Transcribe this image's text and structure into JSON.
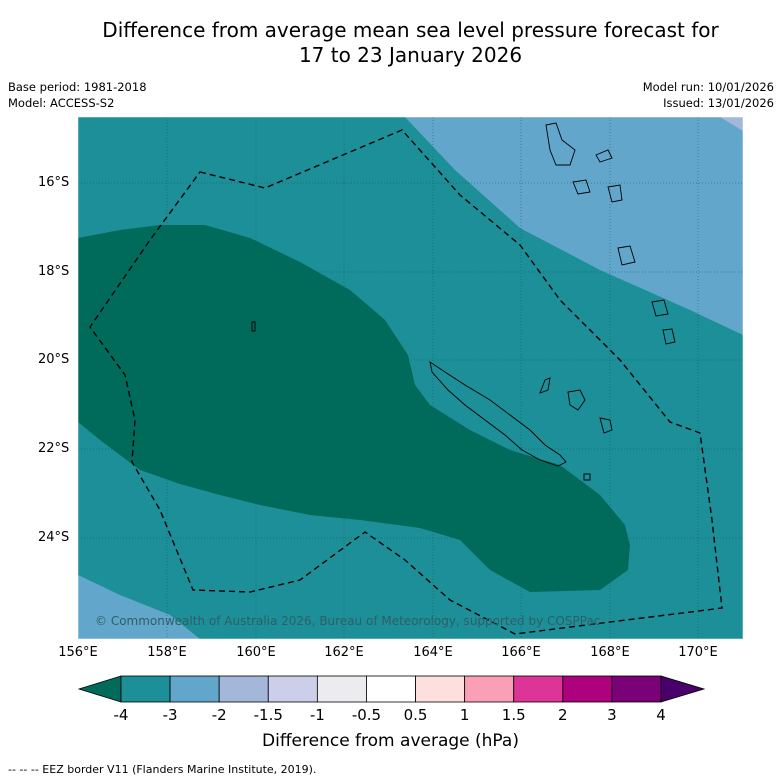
{
  "title_line1": "Difference from average mean sea level pressure forecast for",
  "title_line2": "17 to 23 January 2026",
  "base_period": "Base period: 1981-2018",
  "model": "Model: ACCESS-S2",
  "model_run": "Model run: 10/01/2026",
  "issued": "Issued: 13/01/2026",
  "lat_labels": [
    "16°S",
    "18°S",
    "20°S",
    "22°S",
    "24°S"
  ],
  "lon_labels": [
    "156°E",
    "158°E",
    "160°E",
    "162°E",
    "164°E",
    "166°E",
    "168°E",
    "170°E"
  ],
  "copyright": "© Commonwealth of Australia 2026, Bureau of Meteorology, supported by COSPPac",
  "colorbar": {
    "ticks": [
      "-4",
      "-3",
      "-2",
      "-1.5",
      "-1",
      "-0.5",
      "0.5",
      "1",
      "1.5",
      "2",
      "3",
      "4"
    ],
    "colors": [
      "#006b5b",
      "#1d8f98",
      "#62a7cb",
      "#a3b8d8",
      "#ccceea",
      "#ececf0",
      "#ffffff",
      "#fde0dd",
      "#fa9fb5",
      "#dd3497",
      "#ae017e",
      "#7a0177",
      "#49006a"
    ],
    "label": "Difference from average (hPa)"
  },
  "eez_note": "-- -- -- EEZ border V11 (Flanders Marine Institute, 2019)."
}
